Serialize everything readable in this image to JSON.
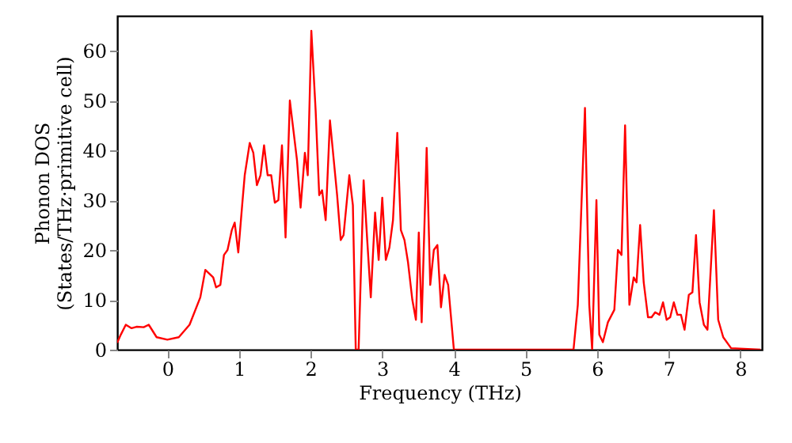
{
  "chart_data": {
    "type": "line",
    "xlabel": "Frequency (THz)",
    "ylabel": "Phonon DOS\n(States/THz·primitive cell)",
    "xlim": [
      -0.7,
      8.3
    ],
    "ylim": [
      0,
      67
    ],
    "xticks": [
      0,
      1,
      2,
      3,
      4,
      5,
      6,
      7,
      8
    ],
    "yticks": [
      0,
      10,
      20,
      30,
      40,
      50,
      60
    ],
    "grid": false,
    "series": [
      {
        "color": "#ff0000",
        "x": [
          -0.7,
          -0.65,
          -0.58,
          -0.5,
          -0.43,
          -0.33,
          -0.26,
          -0.15,
          0.0,
          0.16,
          0.31,
          0.46,
          0.53,
          0.64,
          0.68,
          0.74,
          0.79,
          0.84,
          0.9,
          0.94,
          0.99,
          1.05,
          1.08,
          1.15,
          1.2,
          1.25,
          1.3,
          1.35,
          1.4,
          1.45,
          1.5,
          1.55,
          1.6,
          1.65,
          1.71,
          1.76,
          1.81,
          1.86,
          1.92,
          1.96,
          2.01,
          2.07,
          2.12,
          2.16,
          2.21,
          2.27,
          2.37,
          2.42,
          2.46,
          2.54,
          2.59,
          2.63,
          2.67,
          2.74,
          2.79,
          2.84,
          2.9,
          2.95,
          3.0,
          3.05,
          3.1,
          3.15,
          3.21,
          3.26,
          3.31,
          3.36,
          3.42,
          3.47,
          3.51,
          3.55,
          3.62,
          3.67,
          3.72,
          3.77,
          3.82,
          3.87,
          3.92,
          4.0,
          5.67,
          5.73,
          5.83,
          5.89,
          5.93,
          5.99,
          6.03,
          6.08,
          6.15,
          6.24,
          6.29,
          6.34,
          6.39,
          6.45,
          6.51,
          6.55,
          6.6,
          6.65,
          6.71,
          6.76,
          6.81,
          6.87,
          6.92,
          6.97,
          7.02,
          7.07,
          7.12,
          7.17,
          7.22,
          7.28,
          7.33,
          7.38,
          7.43,
          7.49,
          7.54,
          7.63,
          7.69,
          7.76,
          7.87,
          8.28
        ],
        "values": [
          1.4,
          3,
          5,
          4.3,
          4.6,
          4.5,
          5,
          2.5,
          2,
          2.5,
          5,
          10.5,
          16,
          14.5,
          12.5,
          13,
          19,
          20,
          24,
          25.5,
          19.5,
          30,
          35,
          41.5,
          39.5,
          33,
          35,
          41,
          35,
          35,
          29.5,
          30,
          41,
          22.5,
          50,
          44,
          38,
          28.5,
          39.5,
          35,
          64,
          48,
          31,
          32,
          26,
          46,
          31,
          22,
          23,
          35,
          29,
          0,
          0,
          34,
          22,
          10.5,
          27.5,
          18,
          30.5,
          18,
          20.5,
          26,
          43.5,
          24,
          22,
          17.5,
          10,
          6,
          23.5,
          5.5,
          40.5,
          13,
          20,
          21,
          8.5,
          15,
          13,
          0,
          0,
          9,
          48.5,
          9,
          0,
          30,
          3,
          1.5,
          5.5,
          8,
          20,
          19,
          45,
          9,
          14.5,
          13.5,
          25,
          13.5,
          6.5,
          6.5,
          7.5,
          7,
          9.5,
          6,
          6.5,
          9.5,
          7,
          7,
          4,
          11,
          11.5,
          23,
          9.5,
          5,
          4,
          28,
          6,
          2.5,
          0.3,
          0
        ]
      }
    ]
  }
}
